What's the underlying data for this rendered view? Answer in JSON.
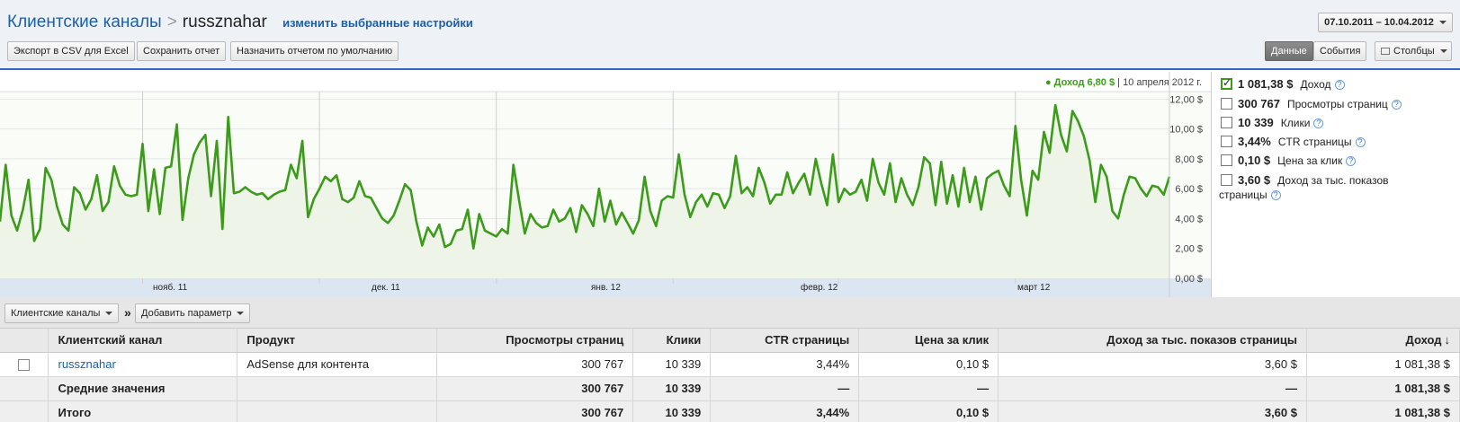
{
  "header": {
    "breadcrumb_root": "Клиентские каналы",
    "breadcrumb_sep": ">",
    "breadcrumb_current": "russznahar",
    "change_settings": "изменить выбранные настройки",
    "date_range": "07.10.2011 – 10.04.2012"
  },
  "toolbar": {
    "export_csv": "Экспорт в CSV для Excel",
    "save_report": "Сохранить отчет",
    "set_default": "Назначить отчетом по умолчанию",
    "view_data": "Данные",
    "view_events": "События",
    "columns": "Столбцы"
  },
  "tooltip": {
    "series": "● Доход 6,80 $",
    "sep": "|",
    "date": "10 апреля 2012 г."
  },
  "chart_data": {
    "type": "area",
    "series": [
      {
        "name": "Доход",
        "color": "#3c9b1b",
        "values": [
          3.8,
          7.6,
          4.2,
          3.2,
          4.6,
          6.6,
          2.5,
          3.3,
          7.4,
          6.6,
          4.8,
          3.6,
          3.2,
          6.1,
          5.7,
          4.6,
          5.3,
          6.9,
          4.5,
          5.1,
          7.5,
          6.2,
          5.6,
          5.5,
          5.6,
          9.0,
          4.5,
          7.3,
          4.3,
          7.4,
          7.5,
          10.3,
          3.9,
          6.7,
          8.3,
          9.1,
          9.6,
          5.5,
          9.2,
          3.3,
          10.8,
          5.7,
          5.8,
          6.1,
          5.8,
          5.6,
          5.7,
          5.3,
          5.6,
          5.8,
          5.9,
          7.6,
          6.7,
          9.2,
          4.1,
          5.3,
          6.0,
          6.8,
          6.5,
          6.9,
          5.3,
          5.1,
          5.4,
          6.5,
          5.5,
          5.4,
          4.7,
          4.0,
          3.7,
          4.2,
          5.2,
          6.3,
          5.9,
          3.8,
          2.2,
          3.4,
          2.8,
          3.6,
          2.1,
          2.3,
          3.2,
          3.3,
          4.6,
          2.0,
          4.3,
          3.2,
          3.0,
          2.8,
          3.3,
          3.0,
          7.6,
          5.2,
          3.0,
          4.3,
          3.7,
          3.4,
          3.5,
          4.6,
          3.8,
          4.0,
          4.7,
          3.1,
          4.9,
          4.3,
          3.5,
          6.0,
          3.8,
          5.2,
          3.6,
          4.4,
          3.7,
          3.0,
          3.9,
          6.8,
          4.5,
          3.5,
          5.2,
          5.5,
          5.4,
          8.3,
          5.6,
          4.1,
          5.1,
          5.6,
          4.8,
          5.7,
          5.6,
          4.7,
          5.5,
          8.2,
          5.7,
          6.1,
          5.5,
          7.4,
          6.4,
          5.0,
          5.6,
          5.6,
          7.1,
          5.7,
          6.4,
          7.0,
          5.6,
          8.0,
          6.3,
          4.9,
          8.3,
          5.1,
          6.0,
          5.6,
          5.8,
          6.6,
          5.2,
          8.0,
          6.4,
          5.6,
          7.7,
          5.1,
          6.7,
          5.6,
          4.9,
          6.1,
          8.1,
          7.7,
          4.9,
          7.8,
          5.0,
          6.9,
          4.8,
          7.4,
          5.1,
          6.8,
          4.6,
          6.7,
          7.0,
          7.2,
          6.2,
          5.5,
          10.2,
          6.6,
          4.2,
          7.2,
          6.6,
          9.8,
          8.4,
          11.6,
          9.6,
          8.5,
          11.2,
          10.5,
          9.5,
          7.9,
          5.1,
          7.6,
          6.8,
          4.5,
          4.0,
          5.6,
          6.8,
          6.7,
          6.0,
          5.5,
          6.2,
          6.1,
          5.6,
          6.8
        ]
      }
    ],
    "x_tick_labels": [
      "нояб. 11",
      "дек. 11",
      "янв. 12",
      "февр. 12",
      "март 12"
    ],
    "y_tick_labels": [
      "12,00 $",
      "10,00 $",
      "8,00 $",
      "6,00 $",
      "4,00 $",
      "2,00 $",
      "0,00 $"
    ],
    "ylim": [
      0,
      12.5
    ],
    "grid": true
  },
  "metrics": [
    {
      "value": "1 081,38 $",
      "label": "Доход",
      "checked": true
    },
    {
      "value": "300 767",
      "label": "Просмотры страниц",
      "checked": false
    },
    {
      "value": "10 339",
      "label": "Клики",
      "checked": false
    },
    {
      "value": "3,44%",
      "label": "CTR страницы",
      "checked": false
    },
    {
      "value": "0,10 $",
      "label": "Цена за клик",
      "checked": false
    },
    {
      "value": "3,60 $",
      "label": "Доход за тыс. показов",
      "label2": "страницы",
      "checked": false
    }
  ],
  "filters": {
    "dimension": "Клиентские каналы",
    "chevron": "»",
    "add_param": "Добавить параметр"
  },
  "table": {
    "headers": [
      "Клиентский канал",
      "Продукт",
      "Просмотры страниц",
      "Клики",
      "CTR страницы",
      "Цена за клик",
      "Доход за тыс. показов страницы",
      "Доход"
    ],
    "sort_arrow": "↓",
    "row": [
      "russznahar",
      "AdSense для контента",
      "300 767",
      "10 339",
      "3,44%",
      "0,10 $",
      "3,60 $",
      "1 081,38 $"
    ],
    "avg": [
      "Средние значения",
      "",
      "300 767",
      "10 339",
      "—",
      "—",
      "—",
      "1 081,38 $"
    ],
    "total": [
      "Итого",
      "",
      "300 767",
      "10 339",
      "3,44%",
      "0,10 $",
      "3,60 $",
      "1 081,38 $"
    ]
  }
}
